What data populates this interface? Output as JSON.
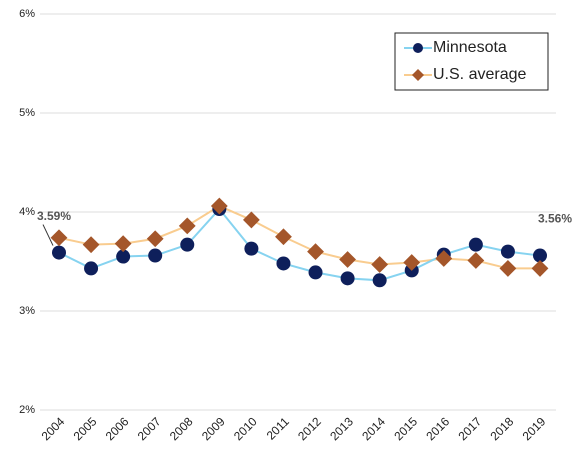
{
  "chart_data": {
    "type": "line",
    "categories": [
      "2004",
      "2005",
      "2006",
      "2007",
      "2008",
      "2009",
      "2010",
      "2011",
      "2012",
      "2013",
      "2014",
      "2015",
      "2016",
      "2017",
      "2018",
      "2019"
    ],
    "series": [
      {
        "name": "Minnesota",
        "color": "#0e1f5b",
        "line_color": "#86d3f0",
        "marker": "circle",
        "values": [
          3.59,
          3.43,
          3.55,
          3.56,
          3.67,
          4.03,
          3.63,
          3.48,
          3.39,
          3.33,
          3.31,
          3.41,
          3.57,
          3.67,
          3.6,
          3.56
        ],
        "value_labels": [
          "3.59%",
          null,
          null,
          null,
          null,
          null,
          null,
          null,
          null,
          null,
          null,
          null,
          null,
          null,
          null,
          "3.56%"
        ]
      },
      {
        "name": "U.S. average",
        "color": "#a4562a",
        "line_color": "#f9cc8f",
        "marker": "diamond",
        "values": [
          3.74,
          3.67,
          3.68,
          3.73,
          3.86,
          4.06,
          3.92,
          3.75,
          3.6,
          3.52,
          3.47,
          3.49,
          3.53,
          3.51,
          3.43,
          3.43
        ]
      }
    ],
    "ylim": [
      2,
      6
    ],
    "yticks": [
      {
        "value": 2,
        "label": "2%"
      },
      {
        "value": 3,
        "label": "3%"
      },
      {
        "value": 4,
        "label": "4%"
      },
      {
        "value": 5,
        "label": "5%"
      },
      {
        "value": 6,
        "label": "6%"
      }
    ],
    "grid": true,
    "legend": "top-right"
  }
}
